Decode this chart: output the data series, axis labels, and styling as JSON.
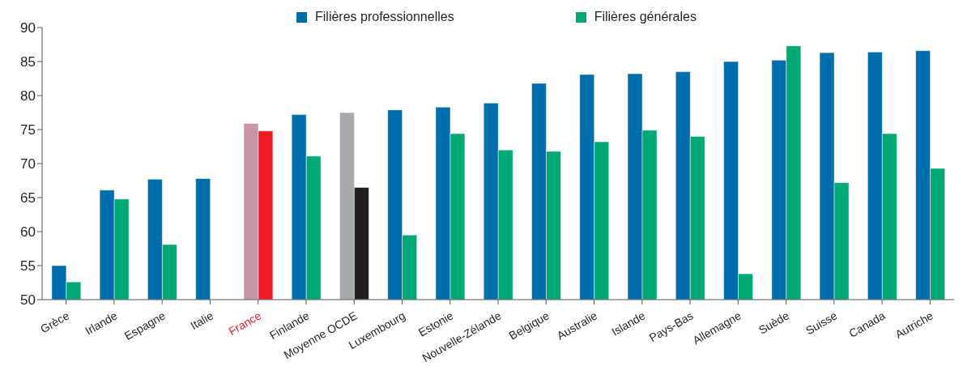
{
  "chart_data": {
    "type": "bar",
    "categories": [
      "Grèce",
      "Irlande",
      "Espagne",
      "Italie",
      "France",
      "Finlande",
      "Moyenne OCDE",
      "Luxembourg",
      "Estonie",
      "Nouvelle-Zélande",
      "Belgique",
      "Australie",
      "Islande",
      "Pays-Bas",
      "Allemagne",
      "Suède",
      "Suisse",
      "Canada",
      "Autriche"
    ],
    "series": [
      {
        "name": "Filières professionnelles",
        "color": "#006eac",
        "colors": [
          "#006eac",
          "#006eac",
          "#006eac",
          "#006eac",
          "#c994a8",
          "#006eac",
          "#a7a9ac",
          "#006eac",
          "#006eac",
          "#006eac",
          "#006eac",
          "#006eac",
          "#006eac",
          "#006eac",
          "#006eac",
          "#006eac",
          "#006eac",
          "#006eac",
          "#006eac"
        ],
        "values": [
          55,
          66.1,
          67.7,
          67.8,
          75.9,
          77.2,
          77.5,
          77.9,
          78.3,
          78.9,
          81.8,
          83.1,
          83.2,
          83.5,
          85.0,
          85.2,
          86.3,
          86.4,
          86.6
        ]
      },
      {
        "name": "Filières générales",
        "color": "#00a876",
        "colors": [
          "#00a876",
          "#00a876",
          "#00a876",
          "#00a876",
          "#ed1c24",
          "#00a876",
          "#231f20",
          "#00a876",
          "#00a876",
          "#00a876",
          "#00a876",
          "#00a876",
          "#00a876",
          "#00a876",
          "#00a876",
          "#00a876",
          "#00a876",
          "#00a876",
          "#00a876"
        ],
        "values": [
          52.6,
          64.8,
          58.1,
          null,
          74.8,
          71.1,
          66.5,
          59.5,
          74.4,
          72.0,
          71.8,
          73.2,
          74.9,
          74.0,
          53.8,
          87.3,
          67.2,
          74.4,
          69.3
        ]
      }
    ],
    "ylim": [
      50,
      90
    ],
    "yticks": [
      50,
      55,
      60,
      65,
      70,
      75,
      80,
      85,
      90
    ],
    "grid": false,
    "legend": "top"
  }
}
